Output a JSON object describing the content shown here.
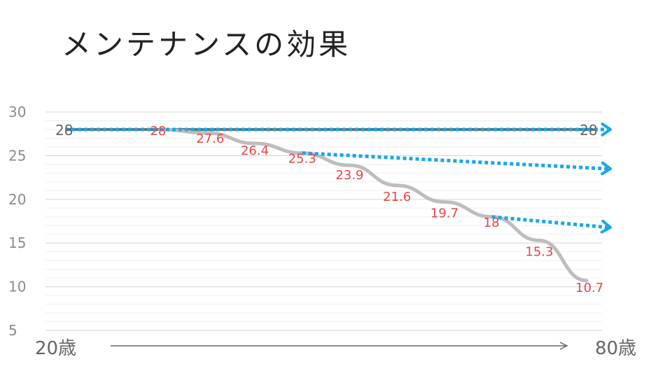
{
  "title": "メンテナンスの効果",
  "chart_data": {
    "type": "line",
    "title": "メンテナンスの効果",
    "ylim": [
      5,
      30
    ],
    "yticks": [
      "30",
      "25",
      "20",
      "15",
      "10",
      "5"
    ],
    "ytick_values": [
      30,
      25,
      20,
      15,
      10,
      5
    ],
    "x_start_label": "20歳",
    "x_end_label": "80歳",
    "grid": true,
    "series": [
      {
        "style": "solid-gray-curve",
        "points": [
          {
            "x": 0,
            "y": 28,
            "label": "28"
          },
          {
            "x": 2,
            "y": 28,
            "label": "28"
          },
          {
            "x": 3,
            "y": 27.6,
            "label": "27.6"
          },
          {
            "x": 4,
            "y": 26.4,
            "label": "26.4"
          },
          {
            "x": 5,
            "y": 25.3,
            "label": "25.3"
          },
          {
            "x": 6,
            "y": 23.9,
            "label": "23.9"
          },
          {
            "x": 7,
            "y": 21.6,
            "label": "21.6"
          },
          {
            "x": 8,
            "y": 19.7,
            "label": "19.7"
          },
          {
            "x": 9,
            "y": 18,
            "label": "18"
          },
          {
            "x": 10,
            "y": 15.3,
            "label": "15.3"
          },
          {
            "x": 11,
            "y": 10.7,
            "label": "10.7"
          }
        ]
      },
      {
        "style": "solid-gray-flat",
        "points": [
          {
            "x": 0,
            "y": 28,
            "label": "28"
          },
          {
            "x": 11,
            "y": 28,
            "label": "28"
          }
        ]
      }
    ],
    "arrows": [
      {
        "from": {
          "x": 0,
          "y": 28
        },
        "to": {
          "x": 11.5,
          "y": 28
        },
        "color": "#1aa7e8"
      },
      {
        "from": {
          "x": 5,
          "y": 25.3
        },
        "to": {
          "x": 11.5,
          "y": 23.5
        },
        "color": "#1aa7e8"
      },
      {
        "from": {
          "x": 9,
          "y": 18
        },
        "to": {
          "x": 11.5,
          "y": 16.8
        },
        "color": "#1aa7e8"
      }
    ],
    "colors": {
      "main_line": "#bdbdbd",
      "flat_line": "#6e6e6e",
      "arrow": "#1aa7e8",
      "data_label": "#e84545",
      "axis_arrow": "#666666"
    }
  }
}
